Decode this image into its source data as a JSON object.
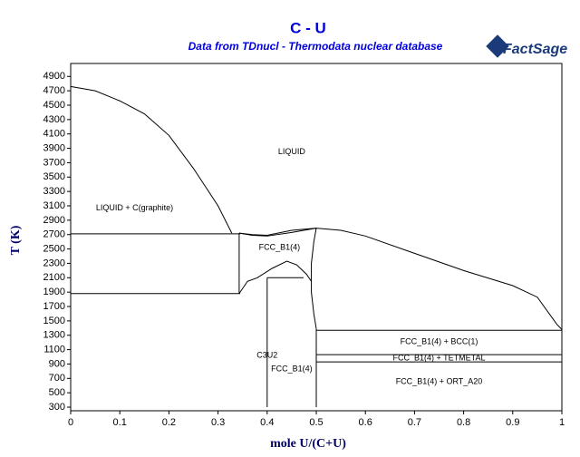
{
  "chart_data": {
    "type": "line",
    "title": "C - U",
    "subtitle": "Data from TDnucl - Thermodata nuclear database",
    "logo": "FactSage",
    "x_label": "mole U/(C+U)",
    "y_label": "T (K)",
    "xlim": [
      0,
      1
    ],
    "ylim": [
      250,
      5080
    ],
    "xticks": [
      0,
      0.1,
      0.2,
      0.3,
      0.4,
      0.5,
      0.6,
      0.7,
      0.8,
      0.9,
      1
    ],
    "yticks": [
      300,
      500,
      700,
      900,
      1100,
      1300,
      1500,
      1700,
      1900,
      2100,
      2300,
      2500,
      2700,
      2900,
      3100,
      3300,
      3500,
      3700,
      3900,
      4100,
      4300,
      4500,
      4700,
      4900
    ],
    "series": [
      {
        "color": "#000000",
        "x": [
          0,
          0.05,
          0.1,
          0.15,
          0.2,
          0.25,
          0.3,
          0.328
        ],
        "values": [
          4760,
          4700,
          4560,
          4380,
          4080,
          3620,
          3100,
          2720
        ]
      },
      {
        "color": "#000000",
        "x": [
          0,
          0.345
        ],
        "values": [
          2710,
          2710
        ]
      },
      {
        "color": "#000000",
        "x": [
          0,
          0.345
        ],
        "values": [
          1880,
          1880
        ]
      },
      {
        "color": "#000000",
        "x": [
          0.343,
          0.343
        ],
        "values": [
          1880,
          2720
        ]
      },
      {
        "color": "#000000",
        "x": [
          0.343,
          0.37,
          0.4,
          0.45,
          0.5,
          0.55,
          0.6,
          0.7,
          0.8,
          0.9,
          0.95,
          0.99,
          1
        ],
        "values": [
          2720,
          2700,
          2690,
          2760,
          2790,
          2760,
          2680,
          2440,
          2200,
          1990,
          1830,
          1450,
          1380
        ]
      },
      {
        "color": "#000000",
        "x": [
          0.343,
          0.37,
          0.4,
          0.45,
          0.5
        ],
        "values": [
          2720,
          2690,
          2680,
          2730,
          2790
        ]
      },
      {
        "color": "#000000",
        "x": [
          0.5,
          0.495,
          0.49,
          0.49,
          0.495,
          0.5
        ],
        "values": [
          2790,
          2600,
          2300,
          1900,
          1600,
          1390
        ]
      },
      {
        "color": "#000000",
        "x": [
          0.343,
          0.36,
          0.38,
          0.41,
          0.44,
          0.46,
          0.48,
          0.49
        ],
        "values": [
          1880,
          2050,
          2100,
          2230,
          2330,
          2280,
          2150,
          2050
        ]
      },
      {
        "color": "#000000",
        "x": [
          0.4,
          0.474
        ],
        "values": [
          2100,
          2100
        ]
      },
      {
        "color": "#000000",
        "x": [
          0.4,
          0.4
        ],
        "values": [
          300,
          2100
        ]
      },
      {
        "color": "#000000",
        "x": [
          0.5,
          0.5
        ],
        "values": [
          300,
          1390
        ]
      },
      {
        "color": "#000000",
        "x": [
          0.5,
          1
        ],
        "values": [
          1370,
          1370
        ]
      },
      {
        "color": "#000000",
        "x": [
          0.5,
          1
        ],
        "values": [
          1030,
          1030
        ]
      },
      {
        "color": "#000000",
        "x": [
          0.5,
          1
        ],
        "values": [
          930,
          930
        ]
      }
    ],
    "annotations": [
      {
        "text": "LIQUID",
        "x": 0.45,
        "y": 3850
      },
      {
        "text": "LIQUID + C(graphite)",
        "x": 0.13,
        "y": 3070
      },
      {
        "text": "FCC_B1(4)",
        "x": 0.425,
        "y": 2520
      },
      {
        "text": "C3U2",
        "x": 0.4,
        "y": 1020
      },
      {
        "text": "FCC_B1(4)",
        "x": 0.45,
        "y": 830
      },
      {
        "text": "FCC_B1(4) + BCC(1)",
        "x": 0.75,
        "y": 1210
      },
      {
        "text": "FCC_B1(4) + TETMETAL",
        "x": 0.75,
        "y": 980
      },
      {
        "text": "FCC_B1(4) + ORT_A20",
        "x": 0.75,
        "y": 650
      }
    ]
  }
}
